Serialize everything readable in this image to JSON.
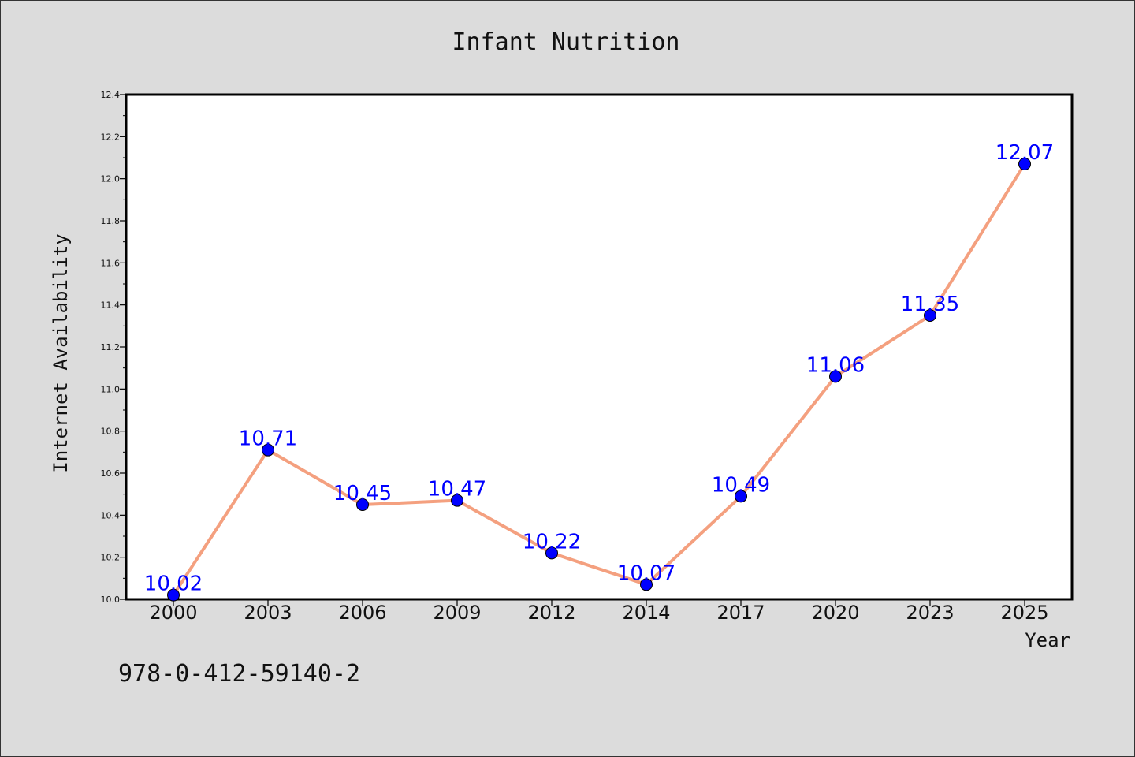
{
  "chart_data": {
    "type": "line",
    "title": "Infant Nutrition",
    "xlabel": "Year",
    "ylabel": "Internet Availability",
    "categories": [
      "2000",
      "2003",
      "2006",
      "2009",
      "2012",
      "2014",
      "2017",
      "2020",
      "2023",
      "2025"
    ],
    "series": [
      {
        "name": "",
        "values": [
          10.02,
          10.71,
          10.45,
          10.47,
          10.22,
          10.07,
          10.49,
          11.06,
          11.35,
          12.07
        ]
      }
    ],
    "data_labels": [
      "10.02",
      "10.71",
      "10.45",
      "10.47",
      "10.22",
      "10.07",
      "10.49",
      "11.06",
      "11.35",
      "12.07"
    ],
    "ylim": [
      10.0,
      12.4
    ],
    "yticks": [
      "10.0",
      "10.2",
      "10.4",
      "10.6",
      "10.8",
      "11.0",
      "11.2",
      "11.4",
      "11.6",
      "11.8",
      "12.0",
      "12.2",
      "12.4"
    ],
    "grid": false,
    "line_color": "#f4a07f",
    "marker_color": "#0000ff",
    "label_color": "#0000ff"
  },
  "footnote": "978-0-412-59140-2"
}
